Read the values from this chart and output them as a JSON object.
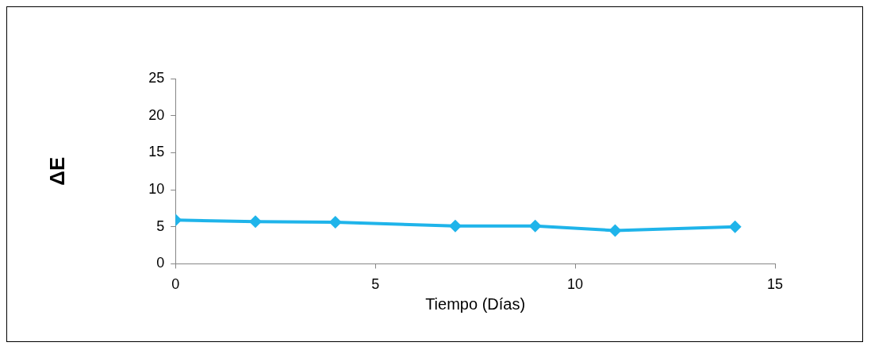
{
  "chart_data": {
    "type": "line",
    "xlabel": "Tiempo (Días)",
    "ylabel": "ΔE",
    "x": [
      0,
      2,
      4,
      7,
      9,
      11,
      14
    ],
    "series": [
      {
        "color": "#1fb4ea",
        "values": [
          5.9,
          5.7,
          5.6,
          5.1,
          5.1,
          4.5,
          5.0
        ]
      }
    ],
    "xlim": [
      0,
      15
    ],
    "xticks": [
      0,
      5,
      10,
      15
    ],
    "ylim": [
      0,
      25
    ],
    "yticks": [
      0,
      5,
      10,
      15,
      20,
      25
    ],
    "grid": false,
    "legend": false,
    "marker": "diamond",
    "line_style": "solid"
  }
}
